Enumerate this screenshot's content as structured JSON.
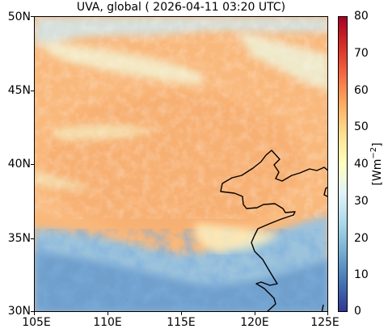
{
  "title": "UVA, global ( 2026-04-11 03:20 UTC)",
  "map": {
    "lat_labels": [
      "50N",
      "45N",
      "40N",
      "35N",
      "30N"
    ],
    "lon_labels": [
      "105E",
      "110E",
      "115E",
      "120E",
      "125E"
    ],
    "lat_range": [
      30,
      50
    ],
    "lon_range": [
      105,
      125
    ]
  },
  "colorbar": {
    "unit_label": "[Wm",
    "unit_exp": "−2",
    "unit_close": "]",
    "ticks": [
      "80",
      "70",
      "60",
      "50",
      "40",
      "30",
      "20",
      "10",
      "0"
    ],
    "range": [
      0,
      80
    ],
    "colormap": "RdYlBu_r",
    "colors": [
      "#313695",
      "#4575b4",
      "#74add1",
      "#abd9e9",
      "#e0f3f8",
      "#ffffbf",
      "#fee090",
      "#fdae61",
      "#f46d43",
      "#d73027",
      "#a50026"
    ]
  }
}
